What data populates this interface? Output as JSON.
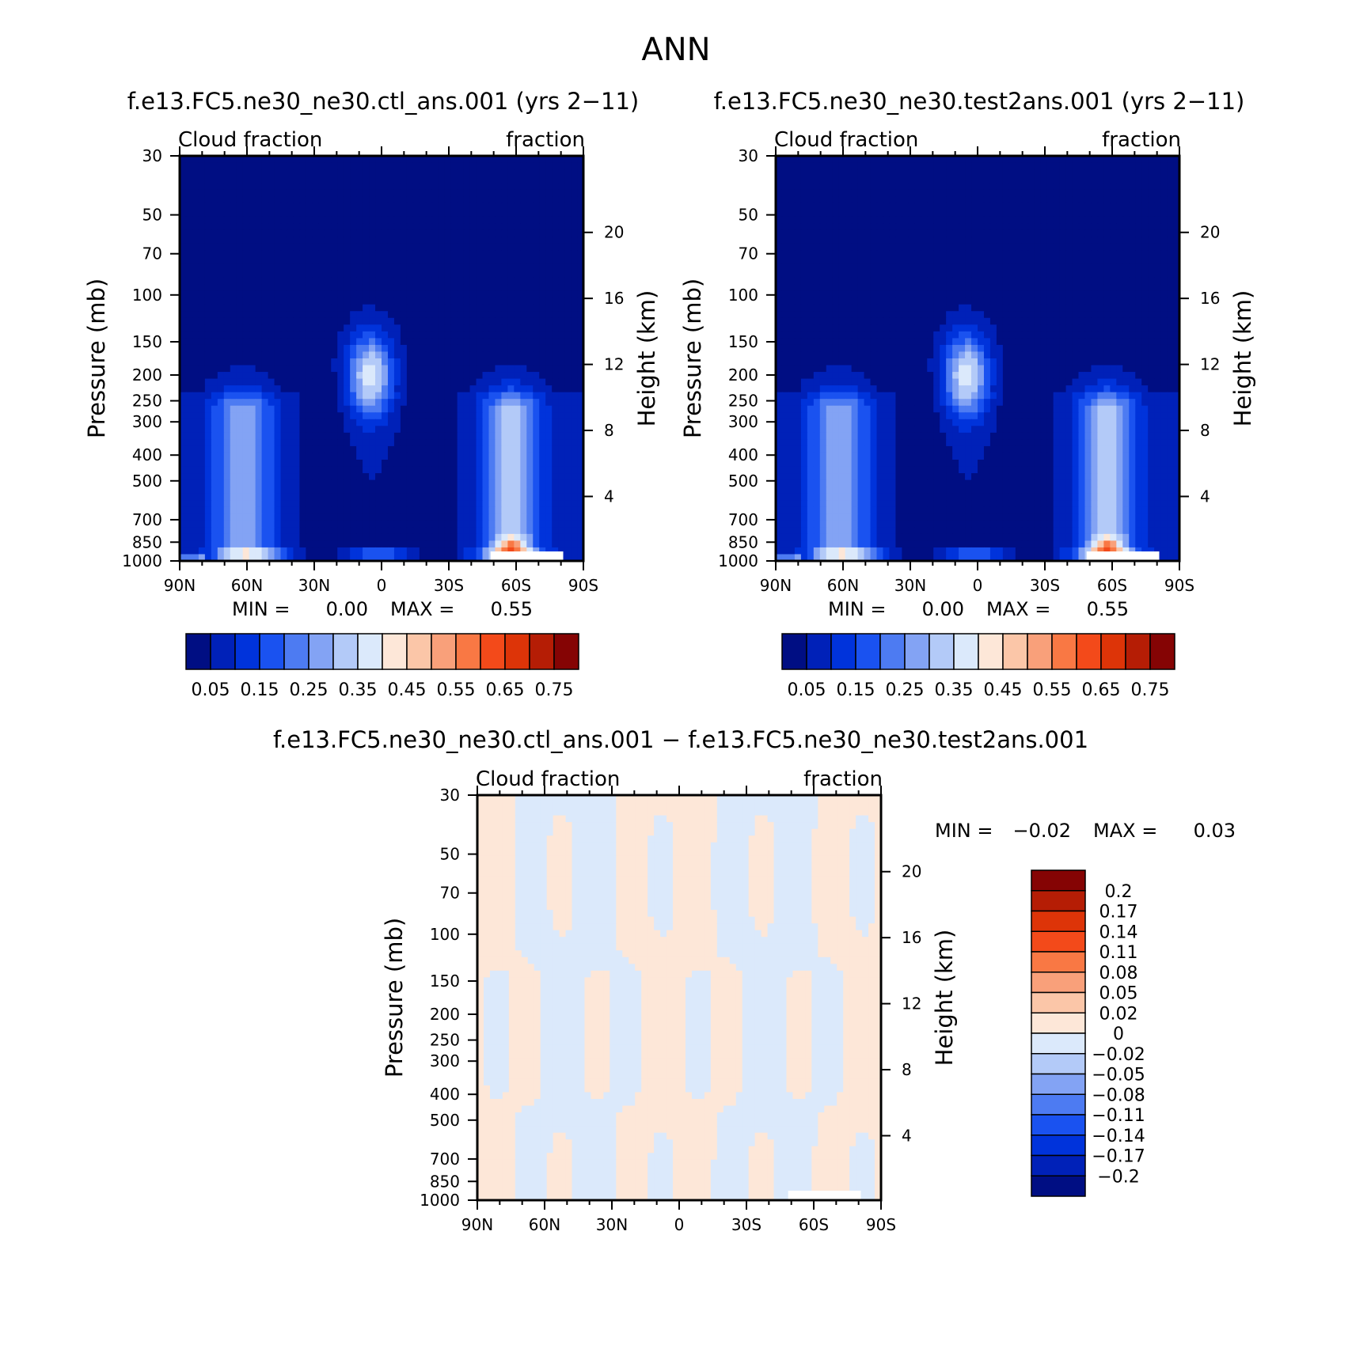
{
  "figure_title": "ANN",
  "chart_data": [
    {
      "type": "heatmap",
      "title": "f.e13.FC5.ne30_ne30.ctl_ans.001 (yrs 2−11)",
      "left_string": "Cloud fraction",
      "right_string": "fraction",
      "xlabel": "",
      "ylabel": "Pressure (mb)",
      "ylabel_right": "Height (km)",
      "x_ticks": [
        "90N",
        "60N",
        "30N",
        "0",
        "30S",
        "60S",
        "90S"
      ],
      "y_ticks": [
        "30",
        "50",
        "70",
        "100",
        "150",
        "200",
        "250",
        "300",
        "400",
        "500",
        "700",
        "850",
        "1000"
      ],
      "y_ticks_right": [
        "20",
        "16",
        "12",
        "8",
        "4"
      ],
      "min_label": "MIN =",
      "min_value": "0.00",
      "max_label": "MAX =",
      "max_value": "0.55",
      "ylim": [
        1000,
        30
      ],
      "xlim": [
        "90N",
        "90S"
      ],
      "colorbar_labels": [
        "0.05",
        "0.15",
        "0.25",
        "0.35",
        "0.45",
        "0.55",
        "0.65",
        "0.75"
      ],
      "colorbar_colors": [
        "#000e83",
        "#0021b8",
        "#0033db",
        "#1a52f0",
        "#4d7bf2",
        "#83a3f4",
        "#b3caf8",
        "#dbe9fb",
        "#fde7d8",
        "#fbc6a8",
        "#f9a07a",
        "#f97844",
        "#f34a1a",
        "#dd3408",
        "#b51d05",
        "#850404"
      ]
    },
    {
      "type": "heatmap",
      "title": "f.e13.FC5.ne30_ne30.test2ans.001 (yrs 2−11)",
      "left_string": "Cloud fraction",
      "right_string": "fraction",
      "xlabel": "",
      "ylabel": "Pressure (mb)",
      "ylabel_right": "Height (km)",
      "x_ticks": [
        "90N",
        "60N",
        "30N",
        "0",
        "30S",
        "60S",
        "90S"
      ],
      "y_ticks": [
        "30",
        "50",
        "70",
        "100",
        "150",
        "200",
        "250",
        "300",
        "400",
        "500",
        "700",
        "850",
        "1000"
      ],
      "y_ticks_right": [
        "20",
        "16",
        "12",
        "8",
        "4"
      ],
      "min_label": "MIN =",
      "min_value": "0.00",
      "max_label": "MAX =",
      "max_value": "0.55",
      "ylim": [
        1000,
        30
      ],
      "xlim": [
        "90N",
        "90S"
      ],
      "colorbar_labels": [
        "0.05",
        "0.15",
        "0.25",
        "0.35",
        "0.45",
        "0.55",
        "0.65",
        "0.75"
      ],
      "colorbar_colors": [
        "#000e83",
        "#0021b8",
        "#0033db",
        "#1a52f0",
        "#4d7bf2",
        "#83a3f4",
        "#b3caf8",
        "#dbe9fb",
        "#fde7d8",
        "#fbc6a8",
        "#f9a07a",
        "#f97844",
        "#f34a1a",
        "#dd3408",
        "#b51d05",
        "#850404"
      ]
    },
    {
      "type": "heatmap",
      "title": "f.e13.FC5.ne30_ne30.ctl_ans.001 − f.e13.FC5.ne30_ne30.test2ans.001",
      "left_string": "Cloud fraction",
      "right_string": "fraction",
      "xlabel": "",
      "ylabel": "Pressure (mb)",
      "ylabel_right": "Height (km)",
      "x_ticks": [
        "90N",
        "60N",
        "30N",
        "0",
        "30S",
        "60S",
        "90S"
      ],
      "y_ticks": [
        "30",
        "50",
        "70",
        "100",
        "150",
        "200",
        "250",
        "300",
        "400",
        "500",
        "700",
        "850",
        "1000"
      ],
      "y_ticks_right": [
        "20",
        "16",
        "12",
        "8",
        "4"
      ],
      "min_label": "MIN =",
      "min_value": "−0.02",
      "max_label": "MAX =",
      "max_value": "0.03",
      "ylim": [
        1000,
        30
      ],
      "xlim": [
        "90N",
        "90S"
      ],
      "colorbar_labels": [
        "0.2",
        "0.17",
        "0.14",
        "0.11",
        "0.08",
        "0.05",
        "0.02",
        "0",
        "−0.02",
        "−0.05",
        "−0.08",
        "−0.11",
        "−0.14",
        "−0.17",
        "−0.2"
      ],
      "colorbar_colors": [
        "#850404",
        "#b51d05",
        "#dd3408",
        "#f34a1a",
        "#f97844",
        "#f9a07a",
        "#fbc6a8",
        "#fde7d8",
        "#dbe9fb",
        "#b3caf8",
        "#83a3f4",
        "#4d7bf2",
        "#1a52f0",
        "#0033db",
        "#0021b8",
        "#000e83"
      ]
    }
  ]
}
